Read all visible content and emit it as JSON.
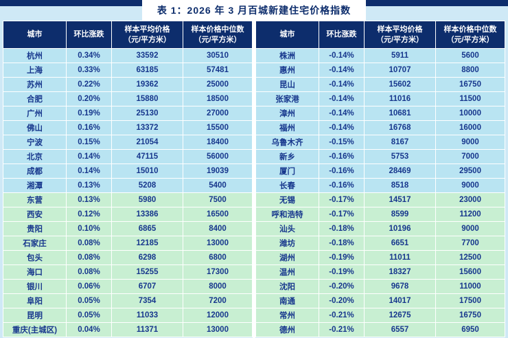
{
  "title": "表 1：2026 年 3 月百城新建住宅价格指数",
  "columns": [
    "城市",
    "环比涨跌",
    "样本平均价格\n（元/平方米）",
    "样本价格中位数\n（元/平方米）"
  ],
  "colors": {
    "header_bg": "#0d2d6c",
    "row_cyan": "#b9e4f2",
    "row_green": "#c8efd2",
    "cell_text": "#17378d",
    "page_bg": "#cfe9f6",
    "grid": "#ffffff"
  },
  "chart_data": {
    "type": "table",
    "title": "表 1：2026 年 3 月百城新建住宅价格指数",
    "columns": [
      "城市",
      "环比涨跌",
      "样本平均价格（元/平方米）",
      "样本价格中位数（元/平方米）"
    ],
    "left_rows": [
      {
        "city": "杭州",
        "change": "0.34%",
        "avg": "33592",
        "median": "30510",
        "group": "cyan"
      },
      {
        "city": "上海",
        "change": "0.33%",
        "avg": "63185",
        "median": "57481",
        "group": "cyan"
      },
      {
        "city": "苏州",
        "change": "0.22%",
        "avg": "19362",
        "median": "25000",
        "group": "cyan"
      },
      {
        "city": "合肥",
        "change": "0.20%",
        "avg": "15880",
        "median": "18500",
        "group": "cyan"
      },
      {
        "city": "广州",
        "change": "0.19%",
        "avg": "25130",
        "median": "27000",
        "group": "cyan"
      },
      {
        "city": "佛山",
        "change": "0.16%",
        "avg": "13372",
        "median": "15500",
        "group": "cyan"
      },
      {
        "city": "宁波",
        "change": "0.15%",
        "avg": "21054",
        "median": "18400",
        "group": "cyan"
      },
      {
        "city": "北京",
        "change": "0.14%",
        "avg": "47115",
        "median": "56000",
        "group": "cyan"
      },
      {
        "city": "成都",
        "change": "0.14%",
        "avg": "15010",
        "median": "19039",
        "group": "cyan"
      },
      {
        "city": "湘潭",
        "change": "0.13%",
        "avg": "5208",
        "median": "5400",
        "group": "cyan"
      },
      {
        "city": "东营",
        "change": "0.13%",
        "avg": "5980",
        "median": "7500",
        "group": "green"
      },
      {
        "city": "西安",
        "change": "0.12%",
        "avg": "13386",
        "median": "16500",
        "group": "green"
      },
      {
        "city": "贵阳",
        "change": "0.10%",
        "avg": "6865",
        "median": "8400",
        "group": "green"
      },
      {
        "city": "石家庄",
        "change": "0.08%",
        "avg": "12185",
        "median": "13000",
        "group": "green"
      },
      {
        "city": "包头",
        "change": "0.08%",
        "avg": "6298",
        "median": "6800",
        "group": "green"
      },
      {
        "city": "海口",
        "change": "0.08%",
        "avg": "15255",
        "median": "17300",
        "group": "green"
      },
      {
        "city": "银川",
        "change": "0.06%",
        "avg": "6707",
        "median": "8000",
        "group": "green"
      },
      {
        "city": "阜阳",
        "change": "0.05%",
        "avg": "7354",
        "median": "7200",
        "group": "green"
      },
      {
        "city": "昆明",
        "change": "0.05%",
        "avg": "11033",
        "median": "12000",
        "group": "green"
      },
      {
        "city": "重庆(主城区)",
        "change": "0.04%",
        "avg": "11371",
        "median": "13000",
        "group": "green"
      }
    ],
    "right_rows": [
      {
        "city": "株洲",
        "change": "-0.14%",
        "avg": "5911",
        "median": "5600",
        "group": "cyan"
      },
      {
        "city": "惠州",
        "change": "-0.14%",
        "avg": "10707",
        "median": "8800",
        "group": "cyan"
      },
      {
        "city": "昆山",
        "change": "-0.14%",
        "avg": "15602",
        "median": "16750",
        "group": "cyan"
      },
      {
        "city": "张家港",
        "change": "-0.14%",
        "avg": "11016",
        "median": "11500",
        "group": "cyan"
      },
      {
        "city": "漳州",
        "change": "-0.14%",
        "avg": "10681",
        "median": "10000",
        "group": "cyan"
      },
      {
        "city": "福州",
        "change": "-0.14%",
        "avg": "16768",
        "median": "16000",
        "group": "cyan"
      },
      {
        "city": "乌鲁木齐",
        "change": "-0.15%",
        "avg": "8167",
        "median": "9000",
        "group": "cyan"
      },
      {
        "city": "新乡",
        "change": "-0.16%",
        "avg": "5753",
        "median": "7000",
        "group": "cyan"
      },
      {
        "city": "厦门",
        "change": "-0.16%",
        "avg": "28469",
        "median": "29500",
        "group": "cyan"
      },
      {
        "city": "长春",
        "change": "-0.16%",
        "avg": "8518",
        "median": "9000",
        "group": "cyan"
      },
      {
        "city": "无锡",
        "change": "-0.17%",
        "avg": "14517",
        "median": "23000",
        "group": "green"
      },
      {
        "city": "呼和浩特",
        "change": "-0.17%",
        "avg": "8599",
        "median": "11200",
        "group": "green"
      },
      {
        "city": "汕头",
        "change": "-0.18%",
        "avg": "10196",
        "median": "9000",
        "group": "green"
      },
      {
        "city": "潍坊",
        "change": "-0.18%",
        "avg": "6651",
        "median": "7700",
        "group": "green"
      },
      {
        "city": "湖州",
        "change": "-0.19%",
        "avg": "11011",
        "median": "12500",
        "group": "green"
      },
      {
        "city": "温州",
        "change": "-0.19%",
        "avg": "18327",
        "median": "15600",
        "group": "green"
      },
      {
        "city": "沈阳",
        "change": "-0.20%",
        "avg": "9678",
        "median": "11000",
        "group": "green"
      },
      {
        "city": "南通",
        "change": "-0.20%",
        "avg": "14017",
        "median": "17500",
        "group": "green"
      },
      {
        "city": "常州",
        "change": "-0.21%",
        "avg": "12675",
        "median": "16750",
        "group": "green"
      },
      {
        "city": "德州",
        "change": "-0.21%",
        "avg": "6557",
        "median": "6950",
        "group": "green"
      }
    ]
  }
}
